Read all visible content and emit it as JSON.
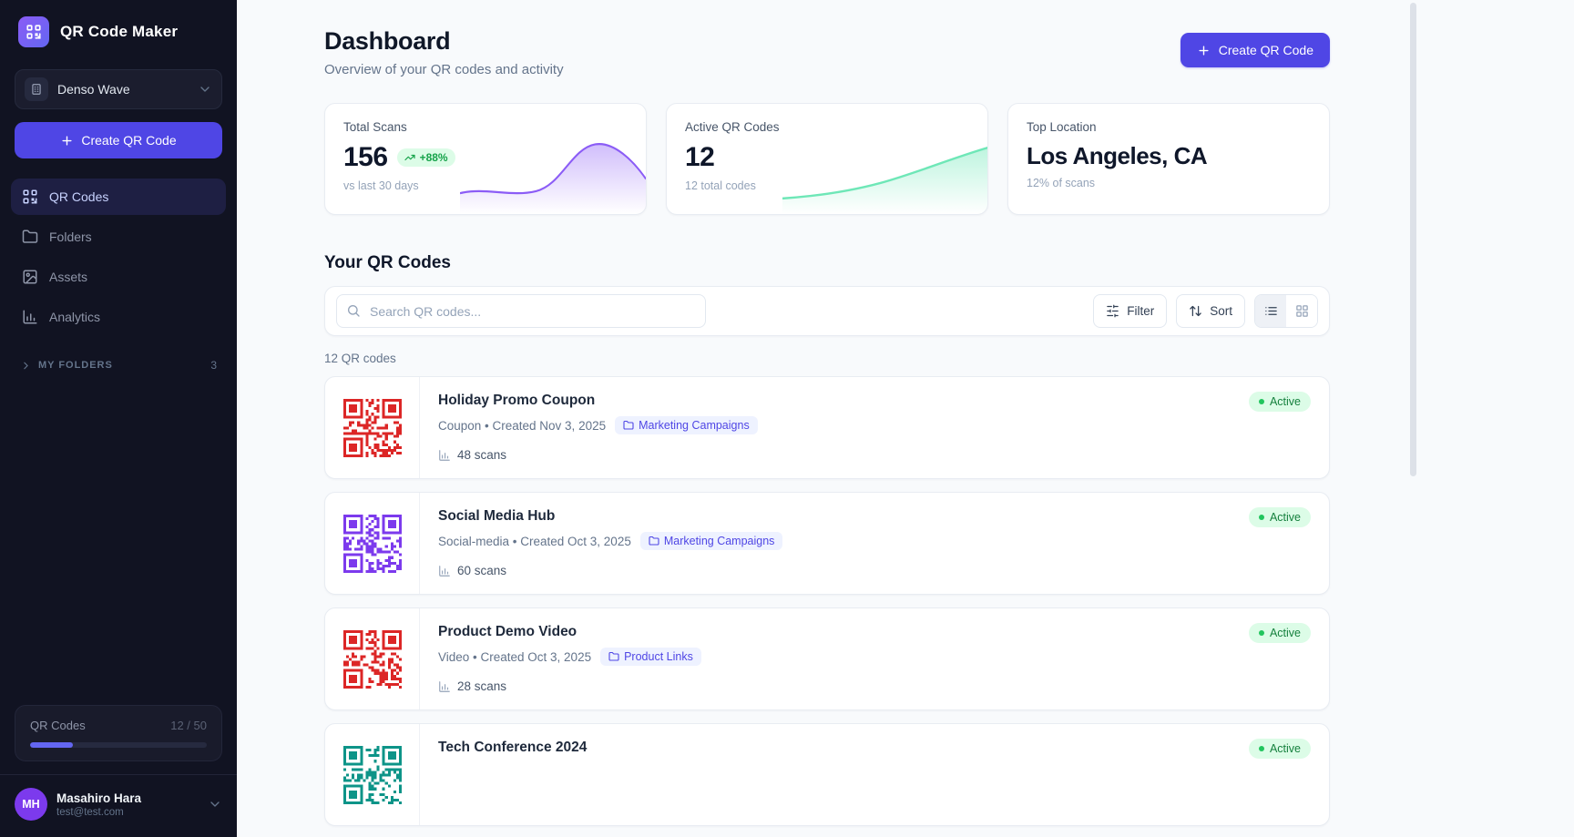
{
  "app": {
    "name": "QR Code Maker"
  },
  "sidebar": {
    "workspace": {
      "name": "Denso Wave"
    },
    "create_button": "Create QR Code",
    "nav": [
      {
        "label": "QR Codes",
        "icon": "qr",
        "active": true
      },
      {
        "label": "Folders",
        "icon": "folder",
        "active": false
      },
      {
        "label": "Assets",
        "icon": "image",
        "active": false
      },
      {
        "label": "Analytics",
        "icon": "chart",
        "active": false
      }
    ],
    "folders_section": {
      "label": "MY FOLDERS",
      "count": "3"
    },
    "usage": {
      "label": "QR Codes",
      "value": "12 / 50",
      "percent": 24,
      "fill_color": "#6366f1"
    },
    "user": {
      "initials": "MH",
      "name": "Masahiro Hara",
      "email": "test@test.com"
    }
  },
  "header": {
    "title": "Dashboard",
    "subtitle": "Overview of your QR codes and activity",
    "create_button": "Create QR Code"
  },
  "stats": [
    {
      "label": "Total Scans",
      "value": "156",
      "badge": "+88%",
      "sub": "vs last 30 days",
      "accent": "#8b5cf6"
    },
    {
      "label": "Active QR Codes",
      "value": "12",
      "sub": "12 total codes",
      "accent": "#6ee7b7"
    },
    {
      "label": "Top Location",
      "value": "Los Angeles, CA",
      "sub": "12% of scans"
    }
  ],
  "list": {
    "section_title": "Your QR Codes",
    "search_placeholder": "Search QR codes...",
    "filter_label": "Filter",
    "sort_label": "Sort",
    "count_text": "12 QR codes",
    "items": [
      {
        "title": "Holiday Promo Coupon",
        "meta": "Coupon • Created Nov 3, 2025",
        "folder": "Marketing Campaigns",
        "scans": "48 scans",
        "status": "Active",
        "qr_color": "#dc2626",
        "seed": 3
      },
      {
        "title": "Social Media Hub",
        "meta": "Social-media • Created Oct 3, 2025",
        "folder": "Marketing Campaigns",
        "scans": "60 scans",
        "status": "Active",
        "qr_color": "#7c3aed",
        "seed": 7
      },
      {
        "title": "Product Demo Video",
        "meta": "Video • Created Oct 3, 2025",
        "folder": "Product Links",
        "scans": "28 scans",
        "status": "Active",
        "qr_color": "#dc2626",
        "seed": 11
      },
      {
        "title": "Tech Conference 2024",
        "status": "Active",
        "qr_color": "#0d9488",
        "seed": 5
      }
    ]
  }
}
